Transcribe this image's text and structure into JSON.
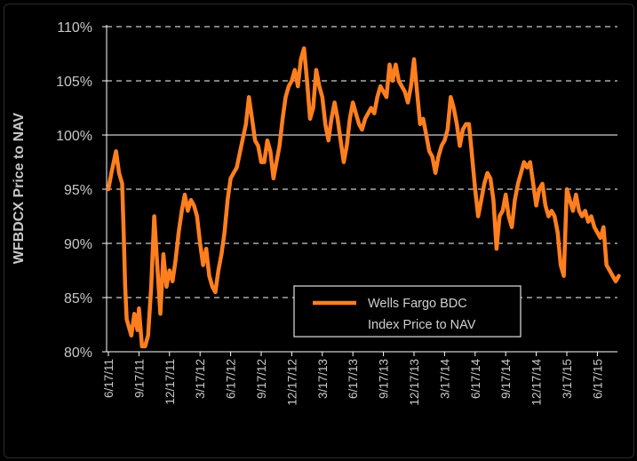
{
  "chart_data": {
    "type": "line",
    "title": "",
    "xlabel": "",
    "ylabel": "WFBDCX Price to NAV",
    "ylim": [
      80,
      110
    ],
    "yticks": [
      80,
      85,
      90,
      95,
      100,
      105,
      110
    ],
    "ytick_labels": [
      "80%",
      "85%",
      "90%",
      "95%",
      "100%",
      "105%",
      "110%"
    ],
    "xticks": [
      "6/17/11",
      "9/17/11",
      "12/17/11",
      "3/17/12",
      "6/17/12",
      "9/17/12",
      "12/17/12",
      "3/17/13",
      "6/17/13",
      "9/17/13",
      "12/17/13",
      "3/17/14",
      "6/17/14",
      "9/17/14",
      "12/17/14",
      "3/17/15",
      "6/17/15"
    ],
    "grid": "horizontal dashed",
    "legend_position": "bottom-right",
    "color": "#ff7f1e",
    "series": [
      {
        "name": "Wells Fargo BDC Index Price to NAV",
        "x": [
          0,
          0.1,
          0.25,
          0.35,
          0.45,
          0.5,
          0.55,
          0.6,
          0.75,
          0.85,
          0.95,
          1.0,
          1.1,
          1.2,
          1.3,
          1.4,
          1.5,
          1.6,
          1.7,
          1.8,
          1.9,
          2.0,
          2.1,
          2.2,
          2.3,
          2.4,
          2.5,
          2.6,
          2.7,
          2.8,
          2.9,
          3.0,
          3.1,
          3.2,
          3.3,
          3.4,
          3.5,
          3.6,
          3.7,
          3.8,
          3.9,
          4.0,
          4.1,
          4.2,
          4.35,
          4.5,
          4.6,
          4.7,
          4.8,
          4.9,
          5.0,
          5.1,
          5.2,
          5.3,
          5.4,
          5.5,
          5.6,
          5.7,
          5.8,
          5.9,
          6.0,
          6.1,
          6.2,
          6.3,
          6.4,
          6.5,
          6.6,
          6.7,
          6.8,
          6.9,
          7.0,
          7.1,
          7.2,
          7.3,
          7.4,
          7.5,
          7.6,
          7.7,
          7.8,
          7.9,
          8.0,
          8.1,
          8.2,
          8.3,
          8.4,
          8.5,
          8.6,
          8.7,
          8.8,
          8.9,
          9.0,
          9.1,
          9.2,
          9.3,
          9.4,
          9.5,
          9.6,
          9.7,
          9.8,
          9.9,
          10.0,
          10.1,
          10.2,
          10.3,
          10.4,
          10.5,
          10.6,
          10.7,
          10.8,
          10.9,
          11.0,
          11.1,
          11.2,
          11.3,
          11.4,
          11.5,
          11.6,
          11.7,
          11.8,
          11.9,
          12.0,
          12.1,
          12.2,
          12.3,
          12.4,
          12.5,
          12.6,
          12.7,
          12.8,
          12.9,
          13.0,
          13.1,
          13.2,
          13.3,
          13.4,
          13.5,
          13.6,
          13.7,
          13.8,
          13.9,
          14.0,
          14.1,
          14.2,
          14.3,
          14.4,
          14.5,
          14.6,
          14.7,
          14.8,
          14.9,
          15.0,
          15.1,
          15.2,
          15.3,
          15.4,
          15.5,
          15.6,
          15.7,
          15.8,
          15.9,
          16.0,
          16.1,
          16.2,
          16.3,
          16.4,
          16.5,
          16.6,
          16.7
        ],
        "values": [
          95.0,
          96.5,
          98.5,
          96.5,
          95.5,
          91.0,
          86.0,
          83.0,
          81.5,
          83.5,
          82.0,
          84.0,
          80.5,
          80.5,
          81.5,
          86.0,
          92.5,
          88.0,
          83.5,
          89.0,
          86.0,
          87.5,
          86.5,
          88.5,
          91.0,
          93.0,
          94.5,
          93.0,
          94.0,
          93.5,
          92.5,
          90.0,
          88.0,
          89.5,
          87.0,
          86.0,
          85.5,
          87.5,
          89.0,
          91.0,
          94.0,
          96.0,
          96.5,
          97.0,
          99.0,
          101.0,
          103.5,
          101.5,
          99.5,
          99.0,
          97.5,
          97.5,
          99.5,
          98.5,
          96.0,
          97.5,
          99.0,
          101.5,
          103.5,
          104.5,
          105.0,
          106.0,
          104.5,
          107.0,
          108.0,
          105.0,
          101.5,
          102.5,
          106.0,
          104.5,
          103.5,
          101.0,
          99.5,
          101.5,
          103.0,
          101.5,
          99.5,
          97.5,
          99.0,
          101.5,
          103.0,
          102.0,
          101.0,
          100.5,
          101.5,
          102.0,
          102.5,
          102.0,
          103.5,
          104.5,
          104.0,
          103.5,
          106.5,
          105.0,
          106.5,
          105.0,
          104.5,
          104.0,
          103.0,
          104.5,
          107.0,
          104.0,
          101.0,
          101.5,
          100.0,
          98.5,
          98.0,
          96.5,
          98.0,
          99.0,
          99.5,
          100.5,
          103.5,
          102.5,
          101.0,
          99.0,
          100.5,
          101.0,
          101.0,
          98.0,
          95.0,
          92.5,
          94.0,
          95.5,
          96.5,
          96.0,
          94.0,
          89.5,
          92.5,
          93.0,
          94.5,
          92.5,
          91.5,
          94.0,
          95.5,
          96.5,
          97.5,
          97.0,
          97.5,
          95.5,
          93.5,
          95.0,
          95.5,
          93.5,
          92.5,
          93.0,
          92.5,
          91.0,
          88.0,
          87.0,
          95.0,
          94.0,
          93.0,
          94.5,
          93.0,
          92.5,
          93.0,
          92.0,
          92.5,
          91.5,
          91.0,
          90.5,
          91.5,
          88.0,
          87.5,
          87.0,
          86.5,
          87.0
        ]
      }
    ]
  },
  "legend": {
    "line1": "Wells Fargo BDC",
    "line2": "Index Price to NAV"
  }
}
